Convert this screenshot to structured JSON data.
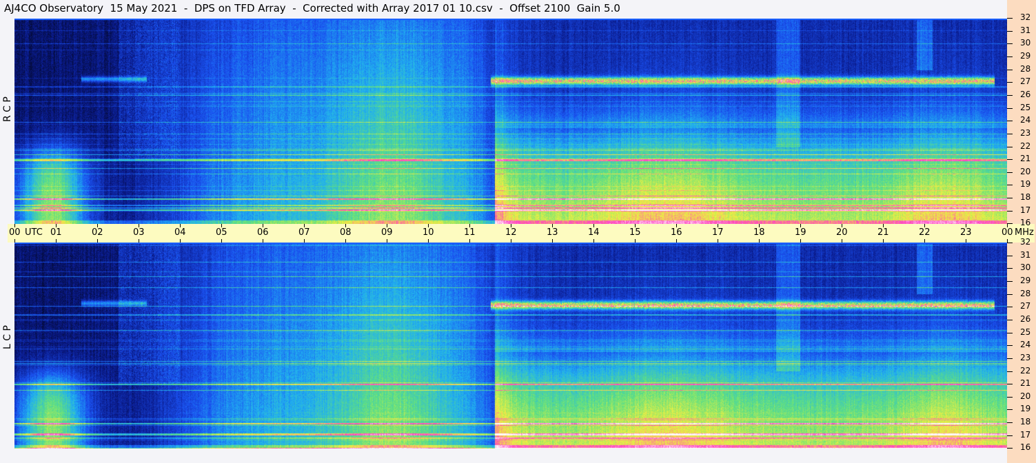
{
  "title": "AJ4CO Observatory  15 May 2021  -  DPS on TFD Array  -  Corrected with Array 2017 01 10.csv  -  Offset 2100  Gain 5.0",
  "chart_data": [
    {
      "type": "heatmap",
      "panel_label": "R C P",
      "xlabel": "UTC",
      "ylabel": "MHz",
      "x_range": [
        "00",
        "00"
      ],
      "y_range": [
        16,
        32
      ],
      "x_ticks": [
        "00",
        "01",
        "02",
        "03",
        "04",
        "05",
        "06",
        "07",
        "08",
        "09",
        "10",
        "11",
        "12",
        "13",
        "14",
        "15",
        "16",
        "17",
        "18",
        "19",
        "20",
        "21",
        "22",
        "23",
        "00"
      ],
      "y_ticks": [
        32,
        31,
        30,
        29,
        28,
        27,
        26,
        25,
        24,
        23,
        22,
        21,
        20,
        19,
        18,
        17,
        16
      ],
      "colormap": [
        "#000000",
        "#0a1a8a",
        "#1a50f0",
        "#20b0f0",
        "#60e080",
        "#f0f040",
        "#ff40c0",
        "#ffffff"
      ]
    },
    {
      "type": "heatmap",
      "panel_label": "L C P",
      "xlabel": "UTC",
      "ylabel": "MHz",
      "x_range": [
        "00",
        "00"
      ],
      "y_range": [
        16,
        32
      ],
      "x_ticks": [
        "00",
        "01",
        "02",
        "03",
        "04",
        "05",
        "06",
        "07",
        "08",
        "09",
        "10",
        "11",
        "12",
        "13",
        "14",
        "15",
        "16",
        "17",
        "18",
        "19",
        "20",
        "21",
        "22",
        "23",
        "00"
      ],
      "y_ticks": [
        32,
        31,
        30,
        29,
        28,
        27,
        26,
        25,
        24,
        23,
        22,
        21,
        20,
        19,
        18,
        17,
        16
      ],
      "colormap": [
        "#000000",
        "#0a1a8a",
        "#1a50f0",
        "#20b0f0",
        "#60e080",
        "#f0f040",
        "#ff40c0",
        "#ffffff"
      ]
    }
  ],
  "axis": {
    "utc_label": "UTC",
    "mhz_label": "MHz"
  },
  "colors": {
    "time_band": "#fdfbc0",
    "freq_band": "#fcdcc0",
    "background": "#f4f4f8"
  }
}
